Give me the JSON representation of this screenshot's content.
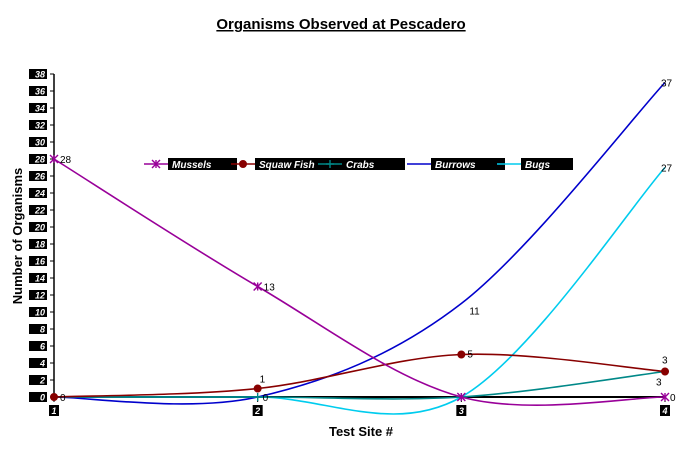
{
  "chart_data": {
    "type": "line",
    "title": "Organisms Observed at Pescadero",
    "xlabel": "Test Site #",
    "ylabel": "Number of Organisms",
    "categories": [
      "1",
      "2",
      "3",
      "4"
    ],
    "ylim": [
      0,
      38
    ],
    "yticks": [
      "0",
      "2",
      "4",
      "6",
      "8",
      "10",
      "12",
      "14",
      "16",
      "18",
      "20",
      "22",
      "24",
      "26",
      "28",
      "30",
      "32",
      "34",
      "36",
      "38"
    ],
    "grid": false,
    "legend_position": "top",
    "series": [
      {
        "name": "Mussels",
        "values": [
          28,
          13,
          0,
          0
        ],
        "color": "#990099",
        "marker": "star",
        "labels": [
          "28",
          "13",
          "",
          "0"
        ]
      },
      {
        "name": "Squaw Fish",
        "values": [
          0,
          1,
          5,
          3
        ],
        "color": "#880000",
        "marker": "circle",
        "labels": [
          "0",
          "1",
          "5",
          "3"
        ]
      },
      {
        "name": "Crabs",
        "values": [
          0,
          0,
          0,
          3
        ],
        "color": "#008888",
        "marker": "plus",
        "labels": [
          "",
          "0",
          "",
          "3"
        ]
      },
      {
        "name": "Burrows",
        "values": [
          0,
          0,
          11,
          37
        ],
        "color": "#0000cc",
        "marker": "none",
        "labels": [
          "",
          "",
          "11",
          "37"
        ]
      },
      {
        "name": "Bugs",
        "values": [
          0,
          0,
          0,
          27
        ],
        "color": "#00ccee",
        "marker": "none",
        "labels": [
          "",
          "",
          "",
          "27"
        ]
      }
    ]
  }
}
